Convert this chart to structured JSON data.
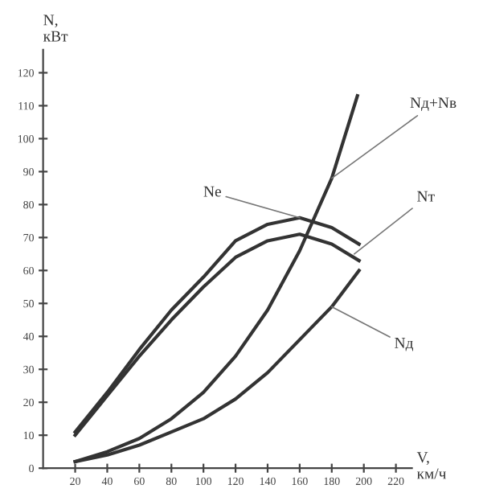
{
  "chart_data": {
    "type": "line",
    "xlabel": "V,\nкм/ч",
    "ylabel": "N,\nкВт",
    "xlim": [
      0,
      230
    ],
    "ylim": [
      0,
      127
    ],
    "xticks": [
      20,
      40,
      60,
      80,
      100,
      120,
      140,
      160,
      180,
      200,
      220
    ],
    "yticks": [
      0,
      10,
      20,
      30,
      40,
      50,
      60,
      70,
      80,
      90,
      100,
      110,
      120
    ],
    "grid": false,
    "legend": false,
    "marker": "none",
    "line_style": "solid",
    "series": [
      {
        "name": "Ne",
        "color": "#333333",
        "x": [
          20,
          40,
          60,
          80,
          100,
          120,
          140,
          160,
          180,
          197
        ],
        "values": [
          11,
          23,
          36,
          48,
          58,
          69,
          74,
          76,
          73,
          68
        ]
      },
      {
        "name": "Nт",
        "color": "#333333",
        "x": [
          20,
          40,
          60,
          80,
          100,
          120,
          140,
          160,
          180,
          197
        ],
        "values": [
          10,
          22,
          34,
          45,
          55,
          64,
          69,
          71,
          68,
          63
        ]
      },
      {
        "name": "Nд+Nв",
        "color": "#333333",
        "x": [
          20,
          40,
          60,
          80,
          100,
          120,
          140,
          160,
          180,
          196
        ],
        "values": [
          2,
          5,
          9,
          15,
          23,
          34,
          48,
          66,
          88,
          113
        ]
      },
      {
        "name": "Nд",
        "color": "#333333",
        "x": [
          20,
          40,
          60,
          80,
          100,
          120,
          140,
          160,
          180,
          197
        ],
        "values": [
          2,
          4,
          7,
          11,
          15,
          21,
          29,
          39,
          49,
          60
        ]
      }
    ]
  }
}
